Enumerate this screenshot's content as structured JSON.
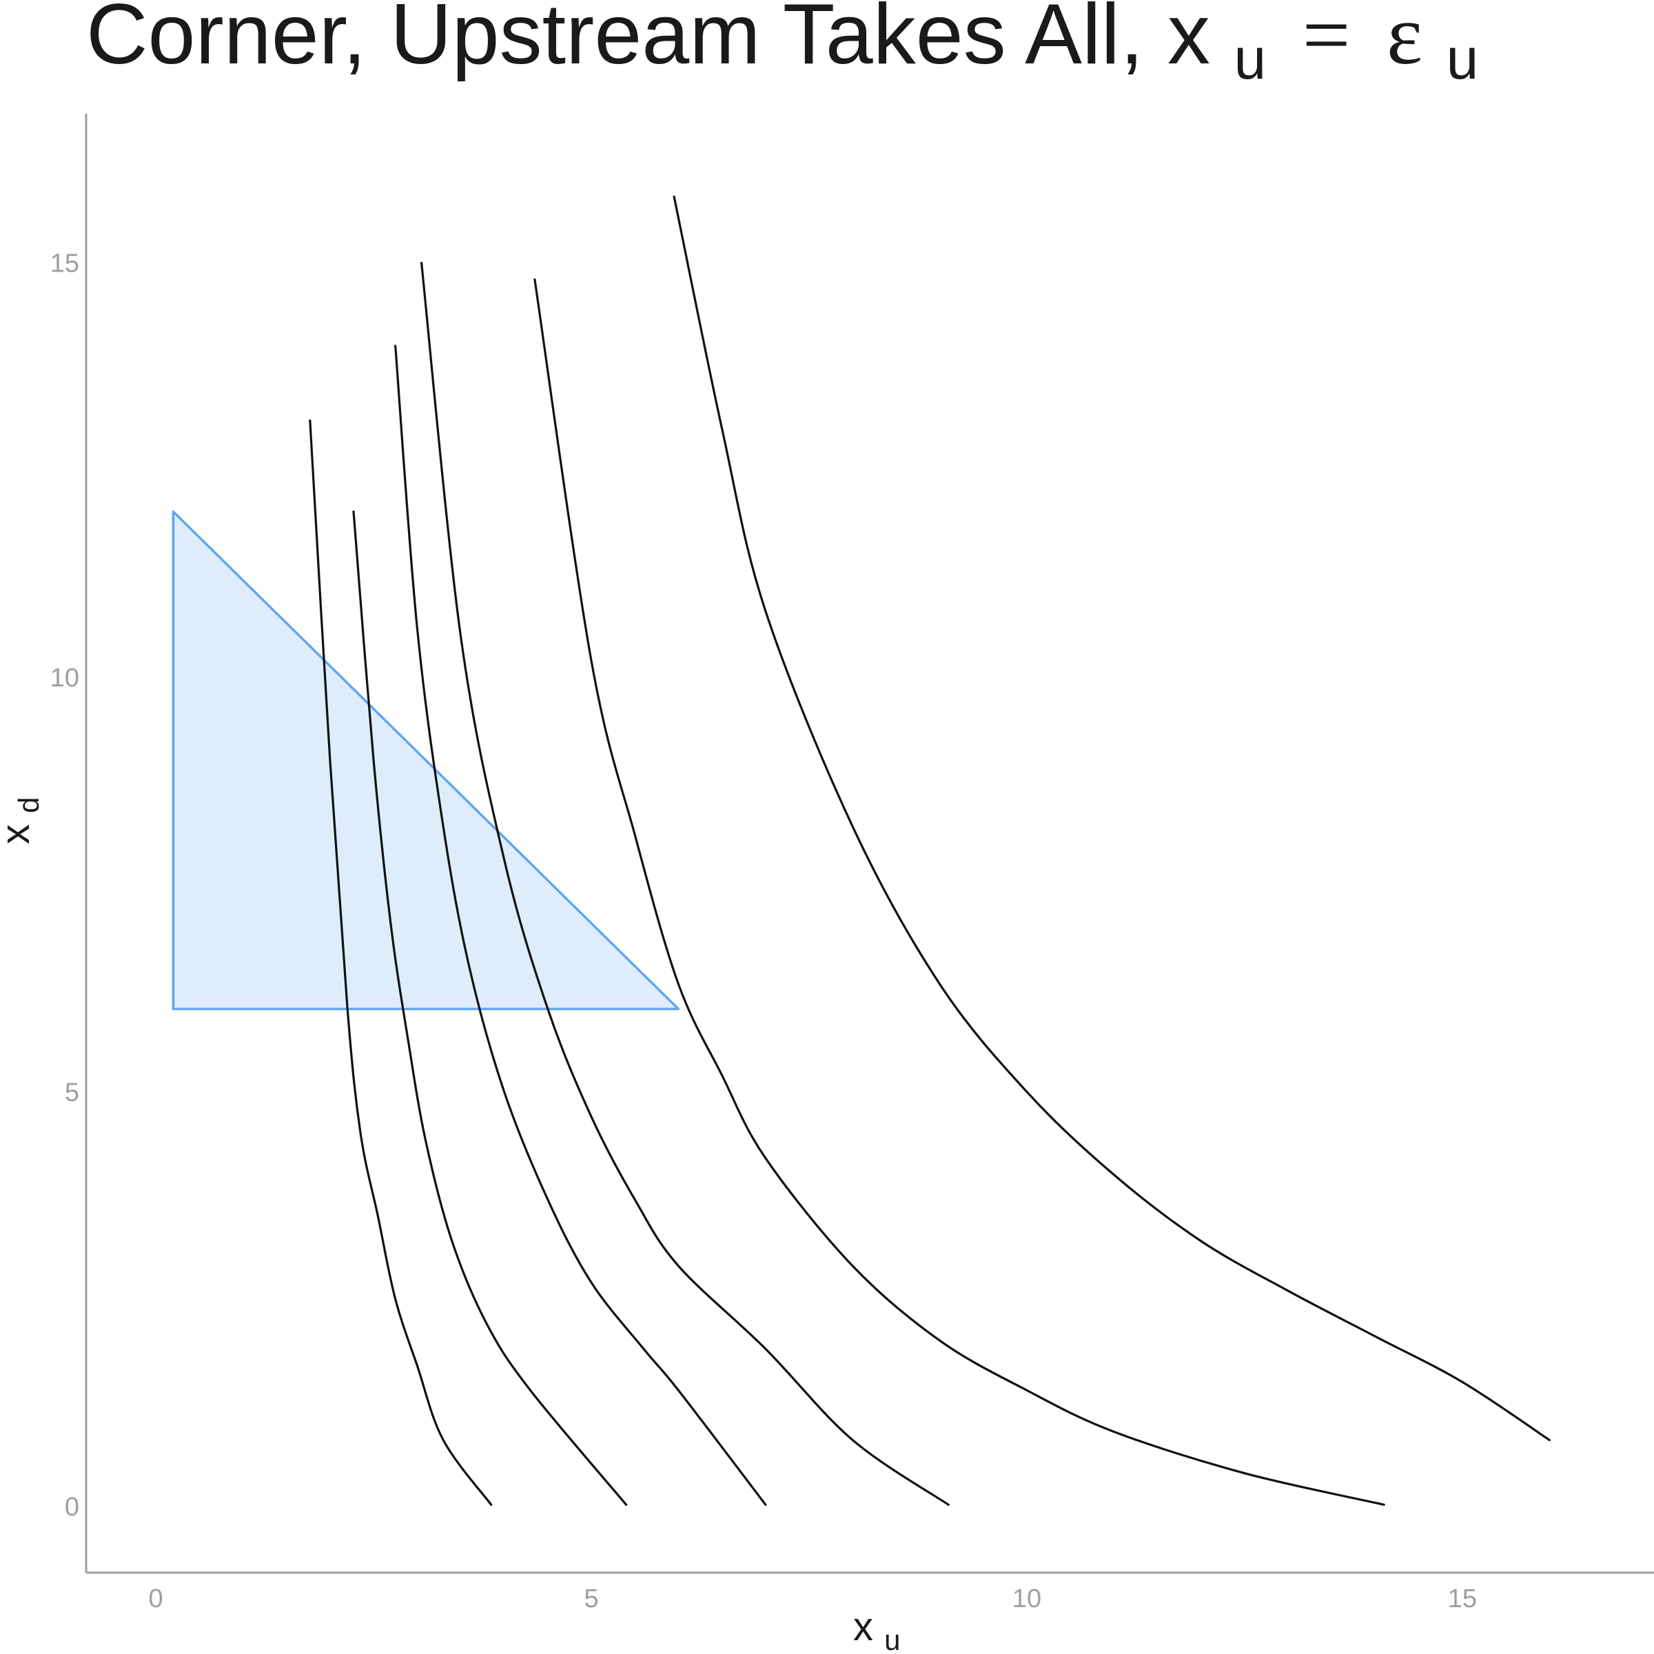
{
  "chart_data": {
    "type": "line",
    "title_parts": {
      "prefix": "Corner, Upstream Takes All, ",
      "lhs_var": "x",
      "lhs_sub": "u",
      "equals": "=",
      "rhs_var": "ε",
      "rhs_sub": "u"
    },
    "xlabel": {
      "var": "x",
      "sub": "u"
    },
    "ylabel": {
      "var": "x",
      "sub": "d"
    },
    "xlim": [
      -0.8,
      17.2
    ],
    "ylim": [
      -0.8,
      16.8
    ],
    "xticks": [
      0,
      5,
      10,
      15
    ],
    "yticks": [
      0,
      5,
      10,
      15
    ],
    "grid": false,
    "legend": "none",
    "colors": {
      "curve": "#111111",
      "region_fill": "#deecfc",
      "region_stroke": "#5da5f0",
      "axis": "#9e9e9e"
    },
    "region": {
      "vertices": [
        [
          0.2,
          12.0
        ],
        [
          6.0,
          6.0
        ],
        [
          0.2,
          6.0
        ]
      ]
    },
    "series": [
      {
        "points": [
          [
            1.77,
            13.1
          ],
          [
            2.0,
            9.0
          ],
          [
            2.2,
            6.0
          ],
          [
            2.35,
            4.5
          ],
          [
            2.55,
            3.5
          ],
          [
            2.75,
            2.5
          ],
          [
            3.0,
            1.7
          ],
          [
            3.3,
            0.8
          ],
          [
            3.85,
            0.02
          ]
        ]
      },
      {
        "points": [
          [
            2.27,
            12.0
          ],
          [
            2.5,
            9.0
          ],
          [
            2.7,
            7.0
          ],
          [
            2.9,
            5.6
          ],
          [
            3.1,
            4.4
          ],
          [
            3.4,
            3.2
          ],
          [
            3.8,
            2.2
          ],
          [
            4.3,
            1.4
          ],
          [
            5.4,
            0.02
          ]
        ]
      },
      {
        "points": [
          [
            2.75,
            14.0
          ],
          [
            3.0,
            10.6
          ],
          [
            3.3,
            8.2
          ],
          [
            3.6,
            6.5
          ],
          [
            4.0,
            5.0
          ],
          [
            4.5,
            3.7
          ],
          [
            5.0,
            2.7
          ],
          [
            5.6,
            1.9
          ],
          [
            6.0,
            1.4
          ],
          [
            7.0,
            0.02
          ]
        ]
      },
      {
        "points": [
          [
            3.05,
            15.0
          ],
          [
            3.5,
            10.5
          ],
          [
            4.0,
            7.8
          ],
          [
            4.5,
            6.0
          ],
          [
            5.0,
            4.7
          ],
          [
            5.5,
            3.7
          ],
          [
            6.0,
            2.9
          ],
          [
            7.0,
            1.9
          ],
          [
            8.0,
            0.8
          ],
          [
            9.1,
            0.02
          ]
        ]
      },
      {
        "points": [
          [
            4.35,
            14.8
          ],
          [
            5.0,
            10.2
          ],
          [
            5.5,
            8.1
          ],
          [
            6.0,
            6.3
          ],
          [
            6.5,
            5.2
          ],
          [
            7.0,
            4.2
          ],
          [
            8.0,
            2.9
          ],
          [
            9.0,
            2.0
          ],
          [
            10.0,
            1.4
          ],
          [
            11.0,
            0.9
          ],
          [
            12.5,
            0.4
          ],
          [
            14.1,
            0.02
          ]
        ]
      },
      {
        "points": [
          [
            5.95,
            15.8
          ],
          [
            6.5,
            13.0
          ],
          [
            7.0,
            10.8
          ],
          [
            8.0,
            8.2
          ],
          [
            9.0,
            6.3
          ],
          [
            10.0,
            5.0
          ],
          [
            11.0,
            4.0
          ],
          [
            12.0,
            3.2
          ],
          [
            13.0,
            2.6
          ],
          [
            14.0,
            2.05
          ],
          [
            15.0,
            1.5
          ],
          [
            16.0,
            0.8
          ]
        ]
      }
    ]
  }
}
